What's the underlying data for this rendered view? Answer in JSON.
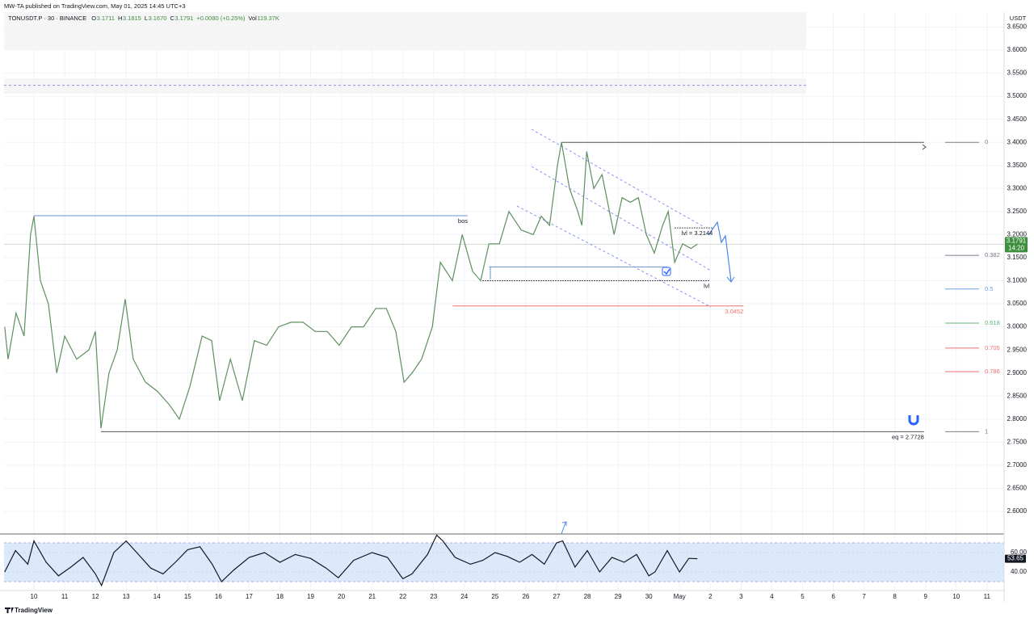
{
  "header": {
    "published": "MW-TA published on TradingView.com, May 01, 2025 14:45 UTC+3",
    "footer": "TradingView"
  },
  "chart_data": [
    {
      "type": "line",
      "title": "TONUSDT.P · 30 · BINANCE",
      "ohlc": [
        {
          "label": "O",
          "value": "3.1711"
        },
        {
          "label": "H",
          "value": "3.1815"
        },
        {
          "label": "L",
          "value": "3.1670"
        },
        {
          "label": "C",
          "value": "3.1791"
        },
        {
          "label": "",
          "value": "+0.0080 (+0.25%)"
        },
        {
          "label": "Vol",
          "value": "119.37K"
        }
      ],
      "y_unit": "USDT",
      "xlim": [
        -0.972,
        31.556
      ],
      "xticks": [
        {
          "value": 0,
          "label": "10"
        },
        {
          "value": 1,
          "label": "11"
        },
        {
          "value": 2,
          "label": "12"
        },
        {
          "value": 3,
          "label": "13"
        },
        {
          "value": 4,
          "label": "14"
        },
        {
          "value": 5,
          "label": "15"
        },
        {
          "value": 6,
          "label": "16"
        },
        {
          "value": 7,
          "label": "17"
        },
        {
          "value": 8,
          "label": "18"
        },
        {
          "value": 9,
          "label": "19"
        },
        {
          "value": 10,
          "label": "20"
        },
        {
          "value": 11,
          "label": "21"
        },
        {
          "value": 12,
          "label": "22"
        },
        {
          "value": 13,
          "label": "23"
        },
        {
          "value": 14,
          "label": "24"
        },
        {
          "value": 15,
          "label": "25"
        },
        {
          "value": 16,
          "label": "26"
        },
        {
          "value": 17,
          "label": "27"
        },
        {
          "value": 18,
          "label": "28"
        },
        {
          "value": 19,
          "label": "29"
        },
        {
          "value": 20,
          "label": "30"
        },
        {
          "value": 21,
          "label": "May"
        },
        {
          "value": 22,
          "label": "2"
        },
        {
          "value": 23,
          "label": "3"
        },
        {
          "value": 24,
          "label": "4"
        },
        {
          "value": 25,
          "label": "5"
        },
        {
          "value": 26,
          "label": "6"
        },
        {
          "value": 27,
          "label": "7"
        },
        {
          "value": 28,
          "label": "8"
        },
        {
          "value": 29,
          "label": "9"
        },
        {
          "value": 30,
          "label": "10"
        },
        {
          "value": 31,
          "label": "11"
        }
      ],
      "ylim": [
        2.5527,
        3.6823
      ],
      "yticks": [
        {
          "value": 2.6,
          "label": "2.6000"
        },
        {
          "value": 2.65,
          "label": "2.6500"
        },
        {
          "value": 2.7,
          "label": "2.7000"
        },
        {
          "value": 2.75,
          "label": "2.7500"
        },
        {
          "value": 2.8,
          "label": "2.8000"
        },
        {
          "value": 2.85,
          "label": "2.8500"
        },
        {
          "value": 2.9,
          "label": "2.9000"
        },
        {
          "value": 2.95,
          "label": "2.9500"
        },
        {
          "value": 3.0,
          "label": "3.0000"
        },
        {
          "value": 3.05,
          "label": "3.0500"
        },
        {
          "value": 3.1,
          "label": "3.1000"
        },
        {
          "value": 3.15,
          "label": "3.1500"
        },
        {
          "value": 3.2,
          "label": "3.2000"
        },
        {
          "value": 3.25,
          "label": "3.2500"
        },
        {
          "value": 3.3,
          "label": "3.3000"
        },
        {
          "value": 3.35,
          "label": "3.3500"
        },
        {
          "value": 3.4,
          "label": "3.4000"
        },
        {
          "value": 3.45,
          "label": "3.4500"
        },
        {
          "value": 3.5,
          "label": "3.5000"
        },
        {
          "value": 3.55,
          "label": "3.5500"
        },
        {
          "value": 3.6,
          "label": "3.6000"
        },
        {
          "value": 3.65,
          "label": "3.6500"
        }
      ],
      "grid": true,
      "series": [
        {
          "color": "#5f8f5f",
          "x": [
            -0.95,
            -0.84,
            -0.58,
            -0.32,
            -0.11,
            0,
            0.21,
            0.47,
            0.74,
            1.0,
            1.39,
            1.79,
            2.0,
            2.18,
            2.44,
            2.71,
            2.97,
            3.23,
            3.63,
            4.02,
            4.42,
            4.73,
            5.07,
            5.47,
            5.78,
            6.04,
            6.39,
            6.78,
            7.17,
            7.57,
            7.96,
            8.36,
            8.75,
            9.15,
            9.54,
            9.93,
            10.33,
            10.72,
            11.12,
            11.46,
            11.77,
            12.04,
            12.3,
            12.61,
            12.96,
            13.22,
            13.61,
            13.93,
            14.27,
            14.53,
            14.8,
            15.14,
            15.45,
            15.85,
            16.24,
            16.5,
            16.77,
            17.03,
            17.16,
            17.42,
            17.69,
            17.82,
            17.98,
            18.21,
            18.48,
            18.87,
            19.13,
            19.4,
            19.66,
            19.92,
            20.18,
            20.45,
            20.63,
            20.84,
            21.1,
            21.37,
            21.58
          ],
          "values": [
            3.0,
            2.93,
            3.03,
            2.98,
            3.2,
            3.24,
            3.1,
            3.05,
            2.9,
            2.98,
            2.93,
            2.95,
            2.99,
            2.78,
            2.9,
            2.95,
            3.06,
            2.93,
            2.88,
            2.86,
            2.83,
            2.8,
            2.87,
            2.98,
            2.97,
            2.84,
            2.93,
            2.84,
            2.97,
            2.96,
            3.0,
            3.01,
            3.01,
            2.99,
            2.99,
            2.96,
            3.0,
            3.0,
            3.04,
            3.04,
            2.99,
            2.88,
            2.9,
            2.93,
            3.0,
            3.14,
            3.1,
            3.2,
            3.12,
            3.1,
            3.18,
            3.18,
            3.25,
            3.21,
            3.2,
            3.24,
            3.22,
            3.35,
            3.4,
            3.3,
            3.25,
            3.22,
            3.38,
            3.3,
            3.33,
            3.2,
            3.28,
            3.27,
            3.28,
            3.2,
            3.16,
            3.22,
            3.25,
            3.14,
            3.18,
            3.17,
            3.1791
          ]
        }
      ],
      "last_price": 3.1791,
      "last_price_color": "#3d8f3d",
      "countdown": "14:20",
      "drawings": [
        {
          "label": "bos",
          "price": 3.241,
          "from": 0,
          "to": 14.11,
          "color": "#6d8fd8",
          "style": "solid"
        },
        {
          "label": "lvl",
          "price": 3.1,
          "from": 14.59,
          "to": 21.97,
          "color": "#131722",
          "style": "dotted"
        },
        {
          "label": "lvl = 3.2144",
          "price": 3.2144,
          "from": 20.84,
          "to": 22.08,
          "color": "#131722",
          "style": "dotted"
        },
        {
          "label": "3.0452",
          "price": 3.0452,
          "from": 13.62,
          "to": 23.08,
          "color": "#f07070",
          "style": "solid"
        },
        {
          "label": "eq = 2.7728",
          "price": 2.7728,
          "from": 2.18,
          "to": 28.95,
          "color": "#555555",
          "style": "solid"
        },
        {
          "price": 3.4,
          "from": 17.16,
          "to": 28.95,
          "color": "#555555",
          "style": "solid"
        },
        {
          "price": 3.13,
          "from": 14.8,
          "to": 20.6,
          "color": "#6d8fd8",
          "style": "solid"
        },
        {
          "price": 3.5235,
          "from": -0.97,
          "to": 25.12,
          "color": "#8a8ff0",
          "style": "dashed"
        }
      ],
      "fib_levels": [
        {
          "label": "0",
          "price": 3.4,
          "color": "#787b86"
        },
        {
          "label": "0.382",
          "price": 3.155,
          "color": "#787b86"
        },
        {
          "label": "0.5",
          "price": 3.082,
          "color": "#6f9ee8"
        },
        {
          "label": "0.618",
          "price": 3.008,
          "color": "#5fb07a"
        },
        {
          "label": "0.705",
          "price": 2.954,
          "color": "#f07070"
        },
        {
          "label": "0.786",
          "price": 2.903,
          "color": "#f07070"
        },
        {
          "label": "1",
          "price": 2.7728,
          "color": "#787b86"
        }
      ]
    },
    {
      "type": "line",
      "xlim": [
        -0.972,
        31.556
      ],
      "ylim": [
        21.7,
        78.3
      ],
      "yticks": [
        {
          "value": 60,
          "label": "60.00"
        },
        {
          "value": 40,
          "label": "40.00"
        }
      ],
      "band": [
        30,
        70
      ],
      "series": [
        {
          "color": "#131722",
          "x": [
            -0.95,
            -0.6,
            -0.2,
            0.0,
            0.4,
            0.8,
            1.2,
            1.6,
            2.0,
            2.2,
            2.6,
            3.0,
            3.4,
            3.8,
            4.2,
            4.6,
            5.0,
            5.4,
            5.8,
            6.1,
            6.5,
            7.0,
            7.5,
            8.0,
            8.5,
            9.0,
            9.5,
            9.9,
            10.4,
            11.0,
            11.5,
            12.0,
            12.3,
            12.8,
            13.1,
            13.3,
            13.7,
            14.2,
            14.6,
            15.0,
            15.4,
            15.8,
            16.2,
            16.6,
            17.0,
            17.2,
            17.6,
            18.0,
            18.4,
            18.8,
            19.2,
            19.6,
            20.0,
            20.2,
            20.6,
            21.0,
            21.3,
            21.58
          ],
          "values": [
            40,
            62,
            48,
            72,
            50,
            36,
            45,
            55,
            38,
            26,
            60,
            72,
            58,
            44,
            38,
            50,
            63,
            66,
            48,
            30,
            42,
            55,
            60,
            50,
            58,
            54,
            44,
            34,
            52,
            60,
            55,
            33,
            38,
            58,
            78,
            72,
            55,
            48,
            52,
            60,
            56,
            50,
            58,
            48,
            70,
            72,
            45,
            62,
            40,
            55,
            50,
            58,
            36,
            40,
            62,
            40,
            54,
            53.65
          ]
        }
      ],
      "last_value": 53.65
    }
  ]
}
